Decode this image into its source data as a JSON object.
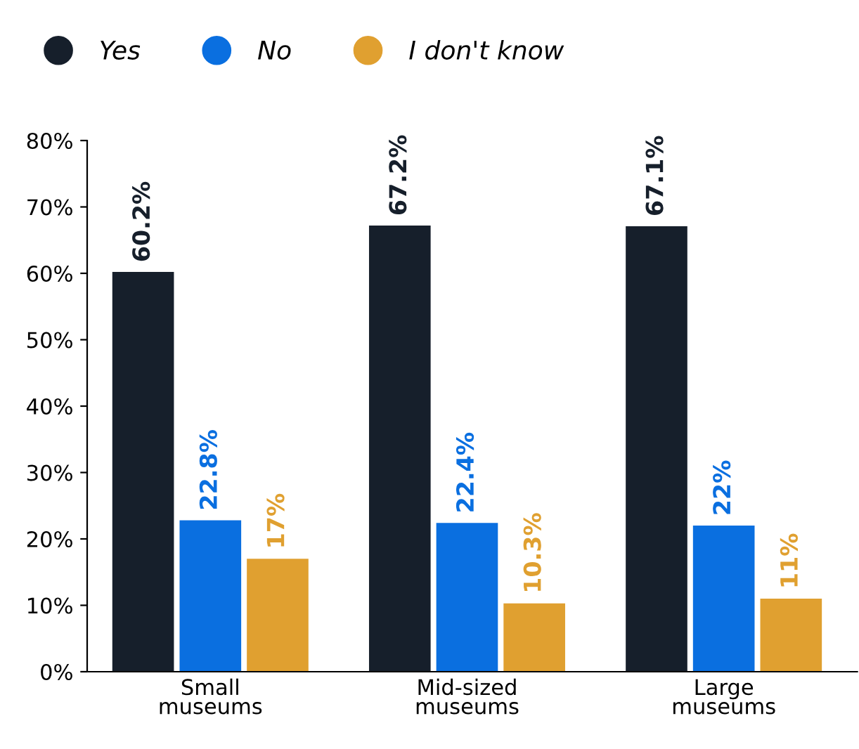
{
  "chart_data": {
    "type": "bar",
    "categories": [
      "Small\nmuseums",
      "Mid-sized\nmuseums",
      "Large\nmuseums"
    ],
    "series": [
      {
        "name": "Yes",
        "color": "#161f2b",
        "values": [
          60.2,
          67.2,
          67.1
        ],
        "value_labels": [
          "60.2%",
          "67.2%",
          "67.1%"
        ]
      },
      {
        "name": "No",
        "color": "#0a6fe0",
        "values": [
          22.8,
          22.4,
          22
        ],
        "value_labels": [
          "22.8%",
          "22.4%",
          "22%"
        ]
      },
      {
        "name": "I don't know",
        "color": "#e0a030",
        "values": [
          17,
          10.3,
          11
        ],
        "value_labels": [
          "17%",
          "10.3%",
          "11%"
        ]
      }
    ],
    "ylim": [
      0,
      80
    ],
    "yticks": [
      {
        "value": 0,
        "label": "0%"
      },
      {
        "value": 10,
        "label": "10%"
      },
      {
        "value": 20,
        "label": "20%"
      },
      {
        "value": 30,
        "label": "30%"
      },
      {
        "value": 40,
        "label": "40%"
      },
      {
        "value": 50,
        "label": "50%"
      },
      {
        "value": 60,
        "label": "60%"
      },
      {
        "value": 70,
        "label": "70%"
      },
      {
        "value": 80,
        "label": "80%"
      }
    ],
    "grid": false,
    "legend": "top"
  }
}
